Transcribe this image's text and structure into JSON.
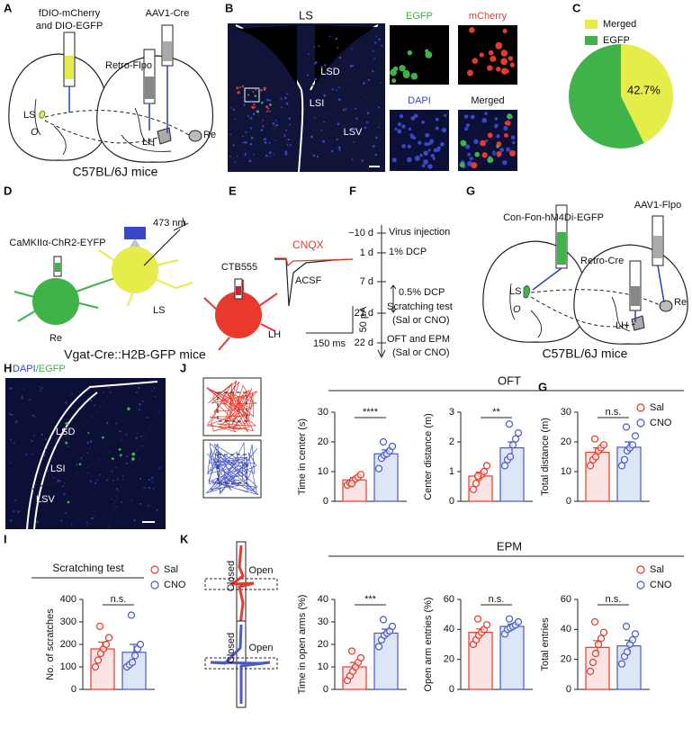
{
  "figure": {
    "letters": [
      "A",
      "B",
      "C",
      "D",
      "E",
      "F",
      "G",
      "H",
      "J",
      "G",
      "I",
      "K"
    ],
    "A": {
      "virus_left_1": "fDIO-mCherry",
      "virus_left_2": "and DIO-EGFP",
      "virus_right": "AAV1-Cre",
      "retro": "Retro-Flpo",
      "ls": "LS",
      "o": "O",
      "lh": "LH",
      "re": "Re",
      "mice": "C57BL/6J mice"
    },
    "B": {
      "title": "LS",
      "lsd": "LSD",
      "lsi": "LSI",
      "lsv": "LSV",
      "egfp": "EGFP",
      "mcherry": "mCherry",
      "dapi": "DAPI",
      "merged": "Merged"
    },
    "D": {
      "light": "473 nm",
      "virus": "CaMKIIα-ChR2-EYFP",
      "tracer": "CTB555",
      "re": "Re",
      "ls": "LS",
      "lh": "LH",
      "mice": "Vgat-Cre::H2B-GFP mice"
    },
    "E": {
      "drug": "CNQX",
      "control": "ACSF",
      "scale_y": "50 pA",
      "scale_x": "150 ms"
    },
    "F": {
      "timeline": [
        {
          "day": "−10 d",
          "event": "Virus injection"
        },
        {
          "day": "1 d",
          "event": "1% DCP"
        },
        {
          "day": "7 d"
        },
        {
          "day": "21 d",
          "event": "Scratching test",
          "detail": "(Sal or CNO)"
        },
        {
          "day": "22 d",
          "event": "OFT and EPM",
          "detail": "(Sal or CNO)"
        }
      ],
      "period": "0.5% DCP"
    },
    "G": {
      "virus_left": "Con-Fon-hM4Di-EGFP",
      "virus_right": "AAV1-Flpo",
      "retro": "Retro-Cre",
      "ls": "LS",
      "o": "O",
      "lh": "LH",
      "re": "Re",
      "mice": "C57BL/6J mice"
    },
    "H": {
      "dapi": "DAPI",
      "egfp": "/EGFP",
      "lsd": "LSD",
      "lsi": "LSI",
      "lsv": "LSV"
    },
    "J": {
      "title": "OFT"
    },
    "K": {
      "title": "EPM",
      "closed_1": "Closed",
      "open_1": "Open",
      "closed_2": "Closed",
      "open_2": "Open"
    }
  },
  "chart_data": [
    {
      "type": "pie",
      "categories": [
        "Merged",
        "EGFP"
      ],
      "values": [
        42.7,
        57.3
      ],
      "value_labels": [
        "42.7%",
        null
      ],
      "colors": [
        "#e6ec4a",
        "#3fb34a"
      ]
    },
    {
      "type": "bar",
      "ylabel": "Time in center (s)",
      "ylim": [
        0,
        30
      ],
      "yticks": [
        0,
        10,
        20,
        30
      ],
      "significance": "****",
      "series": [
        {
          "color": "#e8392c",
          "fill": "#fce4e2",
          "values": [
            7.2
          ],
          "errors": [
            0.8
          ],
          "points": [
            5.5,
            6.2,
            7.0,
            7.5,
            8.2,
            9.0,
            6.0
          ]
        },
        {
          "color": "#4a5bc8",
          "fill": "#dde6f6",
          "values": [
            16
          ],
          "errors": [
            1.3
          ],
          "points": [
            11,
            14.5,
            15.5,
            16,
            17,
            18.5,
            20
          ]
        }
      ]
    },
    {
      "type": "bar",
      "ylabel": "Center distance (m)",
      "ylim": [
        0,
        3
      ],
      "yticks": [
        0,
        1,
        2,
        3
      ],
      "significance": "**",
      "series": [
        {
          "color": "#e8392c",
          "fill": "#fce4e2",
          "values": [
            0.85
          ],
          "errors": [
            0.13
          ],
          "points": [
            0.4,
            0.6,
            0.8,
            0.9,
            1.0,
            1.2,
            0.85
          ]
        },
        {
          "color": "#4a5bc8",
          "fill": "#dde6f6",
          "values": [
            1.8
          ],
          "errors": [
            0.2
          ],
          "points": [
            1.2,
            1.4,
            1.5,
            1.9,
            2.1,
            2.3,
            2.6
          ]
        }
      ]
    },
    {
      "type": "bar",
      "ylabel": "Total distance (m)",
      "ylim": [
        0,
        30
      ],
      "yticks": [
        0,
        10,
        20,
        30
      ],
      "significance": "n.s.",
      "series": [
        {
          "name": "Sal",
          "color": "#e8392c",
          "fill": "#fce4e2",
          "values": [
            16.5
          ],
          "errors": [
            1.5
          ],
          "points": [
            12,
            14,
            15,
            17,
            18,
            19,
            21
          ]
        },
        {
          "name": "CNO",
          "color": "#4a5bc8",
          "fill": "#dde6f6",
          "values": [
            18.2
          ],
          "errors": [
            1.8
          ],
          "points": [
            12,
            14,
            17,
            18,
            19,
            22,
            25
          ]
        }
      ]
    },
    {
      "type": "bar",
      "title": "Scratching test",
      "ylabel": "No. of scratches",
      "ylim": [
        0,
        400
      ],
      "yticks": [
        0,
        100,
        200,
        300,
        400
      ],
      "significance": "n.s.",
      "series": [
        {
          "name": "Sal",
          "color": "#e8392c",
          "fill": "#fce4e2",
          "values": [
            180
          ],
          "errors": [
            30
          ],
          "points": [
            100,
            130,
            160,
            180,
            200,
            230,
            280
          ]
        },
        {
          "name": "CNO",
          "color": "#4a5bc8",
          "fill": "#dde6f6",
          "values": [
            165
          ],
          "errors": [
            35
          ],
          "points": [
            100,
            110,
            120,
            150,
            180,
            200,
            330
          ]
        }
      ]
    },
    {
      "type": "bar",
      "ylabel": "Time in open arms (%)",
      "ylim": [
        0,
        40
      ],
      "yticks": [
        0,
        10,
        20,
        30,
        40
      ],
      "significance": "***",
      "series": [
        {
          "color": "#e8392c",
          "fill": "#fce4e2",
          "values": [
            10
          ],
          "errors": [
            2
          ],
          "points": [
            4,
            6,
            8,
            10,
            12,
            14,
            17
          ]
        },
        {
          "color": "#4a5bc8",
          "fill": "#dde6f6",
          "values": [
            25
          ],
          "errors": [
            1.8
          ],
          "points": [
            19,
            22,
            24,
            25,
            26,
            28,
            31
          ]
        }
      ]
    },
    {
      "type": "bar",
      "ylabel": "Open arm entries (%)",
      "ylim": [
        0,
        60
      ],
      "yticks": [
        0,
        20,
        40,
        60
      ],
      "significance": "n.s.",
      "series": [
        {
          "color": "#e8392c",
          "fill": "#fce4e2",
          "values": [
            38
          ],
          "errors": [
            2.3
          ],
          "points": [
            30,
            33,
            36,
            38,
            40,
            43,
            47
          ]
        },
        {
          "color": "#4a5bc8",
          "fill": "#dde6f6",
          "values": [
            42
          ],
          "errors": [
            1.5
          ],
          "points": [
            37,
            40,
            41,
            42,
            43,
            45,
            47
          ]
        }
      ]
    },
    {
      "type": "bar",
      "ylabel": "Total entries",
      "ylim": [
        0,
        60
      ],
      "yticks": [
        0,
        20,
        40,
        60
      ],
      "significance": "n.s.",
      "series": [
        {
          "name": "Sal",
          "color": "#e8392c",
          "fill": "#fce4e2",
          "values": [
            28
          ],
          "errors": [
            4.5
          ],
          "points": [
            12,
            18,
            24,
            30,
            34,
            38,
            45
          ]
        },
        {
          "name": "CNO",
          "color": "#4a5bc8",
          "fill": "#dde6f6",
          "values": [
            29
          ],
          "errors": [
            3.8
          ],
          "points": [
            17,
            22,
            25,
            30,
            33,
            37,
            42
          ]
        }
      ]
    }
  ]
}
